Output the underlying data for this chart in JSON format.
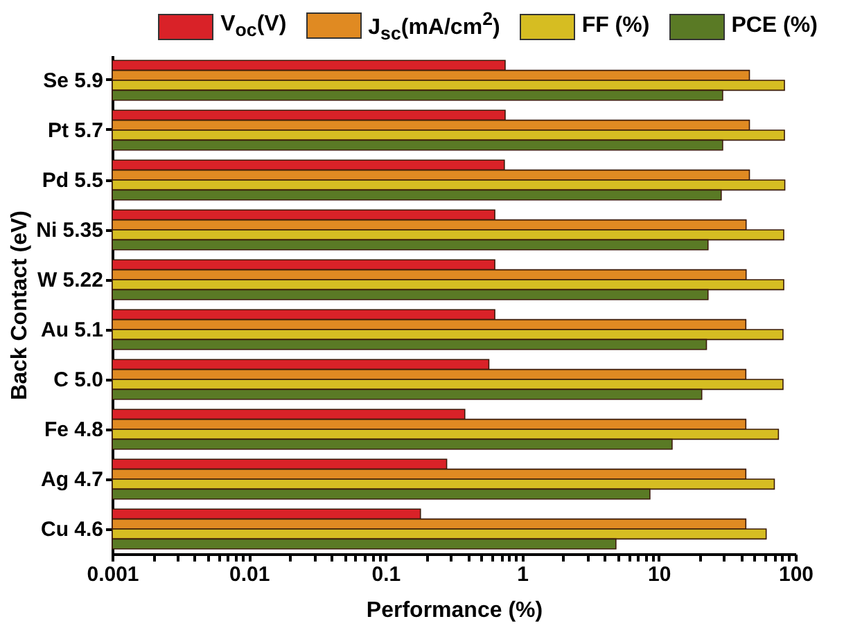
{
  "chart_data": {
    "type": "bar",
    "orientation": "horizontal",
    "log": "x",
    "legend": "top",
    "xlabel": "Performance (%)",
    "ylabel": "Back Contact (eV)",
    "categories": [
      "Se 5.9",
      "Pt 5.7",
      "Pd 5.5",
      "Ni 5.35",
      "W 5.22",
      "Au 5.1",
      "C 5.0",
      "Fe 4.8",
      "Ag 4.7",
      "Cu 4.6"
    ],
    "series": [
      {
        "name": "V$_{oc}$(V)",
        "color": "#d92228",
        "values": [
          0.75,
          0.75,
          0.74,
          0.63,
          0.63,
          0.63,
          0.57,
          0.38,
          0.28,
          0.18
        ]
      },
      {
        "name": "J$_{sc}$(mA/cm$^{2}$)",
        "color": "#e08a22",
        "values": [
          46,
          46,
          46,
          43.5,
          43.5,
          43.3,
          43.3,
          43.3,
          43.3,
          43.3
        ]
      },
      {
        "name": "FF (%)",
        "color": "#d6bd22",
        "values": [
          83,
          83,
          83.5,
          82,
          82,
          81,
          81,
          75,
          70,
          61
        ]
      },
      {
        "name": "PCE (%)",
        "color": "#5a7a25",
        "values": [
          29.3,
          29.3,
          28.6,
          22.9,
          22.9,
          22.3,
          20.6,
          12.5,
          8.6,
          4.85
        ]
      }
    ],
    "xlim": [
      0.001,
      100
    ],
    "xticks": [
      0.001,
      {
        "value": 0.002,
        "label": null
      },
      {
        "value": 0.003,
        "label": null
      },
      {
        "value": 0.004,
        "label": null
      },
      {
        "value": 0.005,
        "label": null
      },
      {
        "value": 0.006,
        "label": null
      },
      {
        "value": 0.007,
        "label": null
      },
      {
        "value": 0.008,
        "label": null
      },
      {
        "value": 0.009,
        "label": null
      },
      0.01,
      {
        "value": 0.02,
        "label": null
      },
      {
        "value": 0.03,
        "label": null
      },
      {
        "value": 0.04,
        "label": null
      },
      {
        "value": 0.05,
        "label": null
      },
      {
        "value": 0.06,
        "label": null
      },
      {
        "value": 0.07,
        "label": null
      },
      {
        "value": 0.08,
        "label": null
      },
      {
        "value": 0.09,
        "label": null
      },
      0.1,
      {
        "value": 0.2,
        "label": null
      },
      {
        "value": 0.3,
        "label": null
      },
      {
        "value": 0.4,
        "label": null
      },
      {
        "value": 0.5,
        "label": null
      },
      {
        "value": 0.6,
        "label": null
      },
      {
        "value": 0.7,
        "label": null
      },
      {
        "value": 0.8,
        "label": null
      },
      {
        "value": 0.9,
        "label": null
      },
      1,
      {
        "value": 2,
        "label": null
      },
      {
        "value": 3,
        "label": null
      },
      {
        "value": 4,
        "label": null
      },
      {
        "value": 5,
        "label": null
      },
      {
        "value": 6,
        "label": null
      },
      {
        "value": 7,
        "label": null
      },
      {
        "value": 8,
        "label": null
      },
      {
        "value": 9,
        "label": null
      },
      10,
      {
        "value": 20,
        "label": null
      },
      {
        "value": 30,
        "label": null
      },
      {
        "value": 40,
        "label": null
      },
      {
        "value": 50,
        "label": null
      },
      {
        "value": 60,
        "label": null
      },
      {
        "value": 70,
        "label": null
      },
      {
        "value": 80,
        "label": null
      },
      {
        "value": 90,
        "label": null
      },
      100
    ]
  }
}
